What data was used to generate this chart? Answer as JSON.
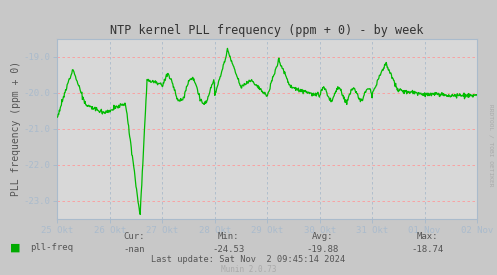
{
  "title": "NTP kernel PLL frequency (ppm + 0) - by week",
  "ylabel": "PLL frequency (ppm + 0)",
  "bg_color": "#c8c8c8",
  "plot_bg_color": "#d8d8d8",
  "line_color": "#00bb00",
  "ylim": [
    -23.5,
    -18.5
  ],
  "yticks": [
    -23.0,
    -22.0,
    -21.0,
    -20.0,
    -19.0
  ],
  "x_labels": [
    "25 Okt",
    "26 Okt",
    "27 Okt",
    "28 Okt",
    "29 Okt",
    "30 Okt",
    "31 Okt",
    "01 Nov",
    "02 Nov"
  ],
  "legend_label": "pll-freq",
  "legend_color": "#00aa00",
  "cur_label": "Cur:",
  "cur_val": "-nan",
  "min_label": "Min:",
  "min_val": "-24.53",
  "avg_label": "Avg:",
  "avg_val": "-19.88",
  "max_label": "Max:",
  "max_val": "-18.74",
  "last_update": "Last update: Sat Nov  2 09:45:14 2024",
  "munin_version": "Munin 2.0.73",
  "rrdtool_label": "RRDTOOL / TOBI OETIKER",
  "font_color": "#555555",
  "tick_color": "#555555",
  "hgrid_color": "#ff9999",
  "vgrid_color": "#aabbcc",
  "spine_color": "#aabbcc"
}
